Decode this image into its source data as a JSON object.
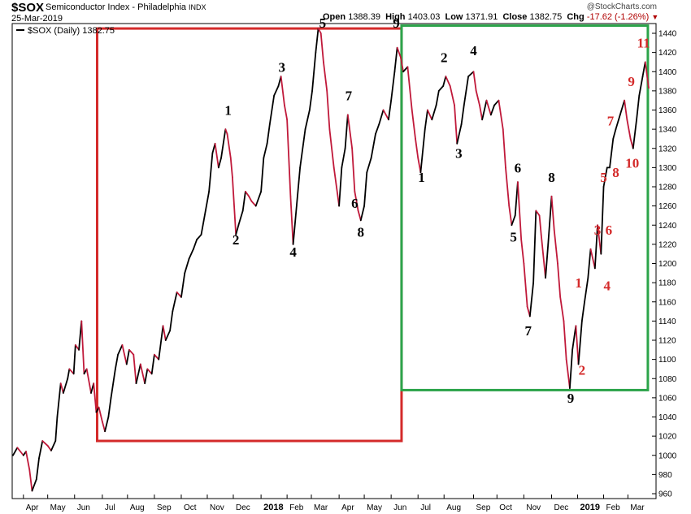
{
  "header": {
    "symbol": "$SOX",
    "name": "Semiconductor Index - Philadelphia",
    "exchange": "INDX",
    "date": "25-Mar-2019",
    "watermark": "@StockCharts.com",
    "open_label": "Open",
    "open": "1388.39",
    "high_label": "High",
    "high": "1403.03",
    "low_label": "Low",
    "low": "1371.91",
    "close_label": "Close",
    "close": "1382.75",
    "chg_label": "Chg",
    "chg": "-17.62 (-1.26%)"
  },
  "colors": {
    "up": "#000000",
    "down": "#c0193a",
    "red_box": "#d42a2a",
    "green_box": "#2ca44a",
    "count_black": "#000000",
    "count_red": "#d42a2a"
  },
  "chart_data": {
    "type": "line",
    "legend": "$SOX (Daily) 1382.75",
    "legend_position": "top-left",
    "grid": false,
    "ylim": [
      950,
      1450
    ],
    "y_ticks": [
      960,
      980,
      1000,
      1020,
      1040,
      1060,
      1080,
      1100,
      1120,
      1140,
      1160,
      1180,
      1200,
      1220,
      1240,
      1260,
      1280,
      1300,
      1320,
      1340,
      1360,
      1380,
      1400,
      1420,
      1440
    ],
    "x_ticks": [
      {
        "label": "Apr",
        "date": "2017-04-03"
      },
      {
        "label": "May",
        "date": "2017-05-01"
      },
      {
        "label": "Jun",
        "date": "2017-06-01"
      },
      {
        "label": "Jul",
        "date": "2017-07-03"
      },
      {
        "label": "Aug",
        "date": "2017-08-01"
      },
      {
        "label": "Sep",
        "date": "2017-09-01"
      },
      {
        "label": "Oct",
        "date": "2017-10-02"
      },
      {
        "label": "Nov",
        "date": "2017-11-01"
      },
      {
        "label": "Dec",
        "date": "2017-12-01"
      },
      {
        "label": "2018",
        "date": "2018-01-02",
        "bold": true
      },
      {
        "label": "Feb",
        "date": "2018-02-01"
      },
      {
        "label": "Mar",
        "date": "2018-03-01"
      },
      {
        "label": "Apr",
        "date": "2018-04-02"
      },
      {
        "label": "May",
        "date": "2018-05-01"
      },
      {
        "label": "Jun",
        "date": "2018-06-01"
      },
      {
        "label": "Jul",
        "date": "2018-07-02"
      },
      {
        "label": "Aug",
        "date": "2018-08-01"
      },
      {
        "label": "Sep",
        "date": "2018-09-04"
      },
      {
        "label": "Oct",
        "date": "2018-10-01"
      },
      {
        "label": "Nov",
        "date": "2018-11-01"
      },
      {
        "label": "Dec",
        "date": "2018-12-03"
      },
      {
        "label": "2019",
        "date": "2019-01-02",
        "bold": true
      },
      {
        "label": "Feb",
        "date": "2019-02-01"
      },
      {
        "label": "Mar",
        "date": "2019-03-01"
      }
    ],
    "series": [
      {
        "points": [
          [
            "2017-03-22",
            1000
          ],
          [
            "2017-03-27",
            1008
          ],
          [
            "2017-04-03",
            1000
          ],
          [
            "2017-04-06",
            1004
          ],
          [
            "2017-04-10",
            985
          ],
          [
            "2017-04-13",
            963
          ],
          [
            "2017-04-18",
            975
          ],
          [
            "2017-04-21",
            997
          ],
          [
            "2017-04-25",
            1015
          ],
          [
            "2017-05-01",
            1010
          ],
          [
            "2017-05-05",
            1005
          ],
          [
            "2017-05-10",
            1015
          ],
          [
            "2017-05-12",
            1040
          ],
          [
            "2017-05-16",
            1075
          ],
          [
            "2017-05-19",
            1065
          ],
          [
            "2017-05-24",
            1080
          ],
          [
            "2017-05-26",
            1090
          ],
          [
            "2017-05-31",
            1085
          ],
          [
            "2017-06-02",
            1115
          ],
          [
            "2017-06-06",
            1110
          ],
          [
            "2017-06-09",
            1140
          ],
          [
            "2017-06-12",
            1085
          ],
          [
            "2017-06-15",
            1090
          ],
          [
            "2017-06-20",
            1065
          ],
          [
            "2017-06-23",
            1075
          ],
          [
            "2017-06-26",
            1045
          ],
          [
            "2017-06-29",
            1050
          ],
          [
            "2017-07-03",
            1035
          ],
          [
            "2017-07-06",
            1025
          ],
          [
            "2017-07-10",
            1040
          ],
          [
            "2017-07-13",
            1060
          ],
          [
            "2017-07-18",
            1090
          ],
          [
            "2017-07-21",
            1105
          ],
          [
            "2017-07-26",
            1115
          ],
          [
            "2017-07-31",
            1095
          ],
          [
            "2017-08-03",
            1110
          ],
          [
            "2017-08-08",
            1105
          ],
          [
            "2017-08-11",
            1075
          ],
          [
            "2017-08-16",
            1095
          ],
          [
            "2017-08-21",
            1075
          ],
          [
            "2017-08-24",
            1090
          ],
          [
            "2017-08-29",
            1085
          ],
          [
            "2017-09-01",
            1105
          ],
          [
            "2017-09-06",
            1100
          ],
          [
            "2017-09-11",
            1135
          ],
          [
            "2017-09-14",
            1120
          ],
          [
            "2017-09-19",
            1130
          ],
          [
            "2017-09-22",
            1150
          ],
          [
            "2017-09-27",
            1170
          ],
          [
            "2017-10-02",
            1165
          ],
          [
            "2017-10-06",
            1190
          ],
          [
            "2017-10-11",
            1205
          ],
          [
            "2017-10-16",
            1215
          ],
          [
            "2017-10-20",
            1225
          ],
          [
            "2017-10-25",
            1230
          ],
          [
            "2017-10-30",
            1255
          ],
          [
            "2017-11-03",
            1275
          ],
          [
            "2017-11-07",
            1315
          ],
          [
            "2017-11-10",
            1325
          ],
          [
            "2017-11-14",
            1300
          ],
          [
            "2017-11-17",
            1310
          ],
          [
            "2017-11-22",
            1340
          ],
          [
            "2017-11-24",
            1335
          ],
          [
            "2017-11-28",
            1310
          ],
          [
            "2017-11-30",
            1290
          ],
          [
            "2017-12-04",
            1230
          ],
          [
            "2017-12-07",
            1240
          ],
          [
            "2017-12-12",
            1255
          ],
          [
            "2017-12-15",
            1275
          ],
          [
            "2017-12-19",
            1270
          ],
          [
            "2017-12-22",
            1265
          ],
          [
            "2017-12-27",
            1260
          ],
          [
            "2018-01-02",
            1275
          ],
          [
            "2018-01-05",
            1310
          ],
          [
            "2018-01-09",
            1325
          ],
          [
            "2018-01-12",
            1345
          ],
          [
            "2018-01-17",
            1375
          ],
          [
            "2018-01-22",
            1385
          ],
          [
            "2018-01-25",
            1395
          ],
          [
            "2018-01-29",
            1365
          ],
          [
            "2018-02-01",
            1350
          ],
          [
            "2018-02-05",
            1270
          ],
          [
            "2018-02-08",
            1220
          ],
          [
            "2018-02-12",
            1260
          ],
          [
            "2018-02-16",
            1300
          ],
          [
            "2018-02-22",
            1340
          ],
          [
            "2018-02-27",
            1360
          ],
          [
            "2018-03-02",
            1380
          ],
          [
            "2018-03-06",
            1420
          ],
          [
            "2018-03-09",
            1445
          ],
          [
            "2018-03-12",
            1440
          ],
          [
            "2018-03-15",
            1410
          ],
          [
            "2018-03-19",
            1380
          ],
          [
            "2018-03-22",
            1340
          ],
          [
            "2018-03-27",
            1300
          ],
          [
            "2018-04-02",
            1260
          ],
          [
            "2018-04-05",
            1300
          ],
          [
            "2018-04-09",
            1320
          ],
          [
            "2018-04-12",
            1355
          ],
          [
            "2018-04-17",
            1320
          ],
          [
            "2018-04-20",
            1275
          ],
          [
            "2018-04-24",
            1255
          ],
          [
            "2018-04-27",
            1245
          ],
          [
            "2018-05-01",
            1260
          ],
          [
            "2018-05-04",
            1295
          ],
          [
            "2018-05-09",
            1310
          ],
          [
            "2018-05-14",
            1335
          ],
          [
            "2018-05-18",
            1345
          ],
          [
            "2018-05-23",
            1360
          ],
          [
            "2018-05-29",
            1350
          ],
          [
            "2018-06-01",
            1370
          ],
          [
            "2018-06-05",
            1400
          ],
          [
            "2018-06-08",
            1425
          ],
          [
            "2018-06-12",
            1415
          ],
          [
            "2018-06-15",
            1400
          ],
          [
            "2018-06-20",
            1405
          ],
          [
            "2018-06-25",
            1360
          ],
          [
            "2018-06-29",
            1330
          ],
          [
            "2018-07-02",
            1310
          ],
          [
            "2018-07-05",
            1295
          ],
          [
            "2018-07-10",
            1340
          ],
          [
            "2018-07-13",
            1360
          ],
          [
            "2018-07-18",
            1350
          ],
          [
            "2018-07-23",
            1365
          ],
          [
            "2018-07-26",
            1380
          ],
          [
            "2018-07-31",
            1385
          ],
          [
            "2018-08-03",
            1395
          ],
          [
            "2018-08-08",
            1385
          ],
          [
            "2018-08-13",
            1365
          ],
          [
            "2018-08-16",
            1325
          ],
          [
            "2018-08-21",
            1345
          ],
          [
            "2018-08-24",
            1365
          ],
          [
            "2018-08-29",
            1395
          ],
          [
            "2018-09-04",
            1400
          ],
          [
            "2018-09-07",
            1380
          ],
          [
            "2018-09-11",
            1365
          ],
          [
            "2018-09-14",
            1350
          ],
          [
            "2018-09-19",
            1370
          ],
          [
            "2018-09-24",
            1355
          ],
          [
            "2018-09-28",
            1365
          ],
          [
            "2018-10-03",
            1370
          ],
          [
            "2018-10-08",
            1340
          ],
          [
            "2018-10-11",
            1300
          ],
          [
            "2018-10-15",
            1260
          ],
          [
            "2018-10-18",
            1240
          ],
          [
            "2018-10-22",
            1250
          ],
          [
            "2018-10-25",
            1285
          ],
          [
            "2018-10-29",
            1225
          ],
          [
            "2018-11-01",
            1200
          ],
          [
            "2018-11-05",
            1155
          ],
          [
            "2018-11-08",
            1145
          ],
          [
            "2018-11-12",
            1180
          ],
          [
            "2018-11-15",
            1255
          ],
          [
            "2018-11-19",
            1250
          ],
          [
            "2018-11-21",
            1230
          ],
          [
            "2018-11-26",
            1185
          ],
          [
            "2018-11-29",
            1220
          ],
          [
            "2018-12-03",
            1270
          ],
          [
            "2018-12-06",
            1235
          ],
          [
            "2018-12-10",
            1200
          ],
          [
            "2018-12-13",
            1165
          ],
          [
            "2018-12-17",
            1140
          ],
          [
            "2018-12-20",
            1100
          ],
          [
            "2018-12-24",
            1070
          ],
          [
            "2018-12-27",
            1110
          ],
          [
            "2018-12-31",
            1135
          ],
          [
            "2019-01-03",
            1095
          ],
          [
            "2019-01-07",
            1140
          ],
          [
            "2019-01-10",
            1160
          ],
          [
            "2019-01-14",
            1185
          ],
          [
            "2019-01-17",
            1215
          ],
          [
            "2019-01-22",
            1195
          ],
          [
            "2019-01-25",
            1240
          ],
          [
            "2019-01-29",
            1210
          ],
          [
            "2019-02-01",
            1280
          ],
          [
            "2019-02-05",
            1300
          ],
          [
            "2019-02-08",
            1300
          ],
          [
            "2019-02-12",
            1330
          ],
          [
            "2019-02-15",
            1340
          ],
          [
            "2019-02-20",
            1355
          ],
          [
            "2019-02-25",
            1370
          ],
          [
            "2019-02-28",
            1350
          ],
          [
            "2019-03-04",
            1330
          ],
          [
            "2019-03-07",
            1320
          ],
          [
            "2019-03-11",
            1350
          ],
          [
            "2019-03-14",
            1375
          ],
          [
            "2019-03-18",
            1395
          ],
          [
            "2019-03-21",
            1410
          ],
          [
            "2019-03-25",
            1383
          ]
        ]
      }
    ],
    "boxes": [
      {
        "name": "red",
        "color": "#d42a2a",
        "x": [
          "2017-06-27",
          "2018-06-13"
        ],
        "y": [
          1015,
          1445
        ]
      },
      {
        "name": "green",
        "color": "#2ca44a",
        "x": [
          "2018-06-13",
          "2019-03-24"
        ],
        "y": [
          1068,
          1448
        ]
      }
    ],
    "annotations": [
      {
        "text": "1",
        "date": "2017-11-25",
        "y": 1355,
        "color": "black"
      },
      {
        "text": "2",
        "date": "2017-12-04",
        "y": 1220,
        "color": "black"
      },
      {
        "text": "3",
        "date": "2018-01-26",
        "y": 1400,
        "color": "black"
      },
      {
        "text": "4",
        "date": "2018-02-08",
        "y": 1207,
        "color": "black"
      },
      {
        "text": "5",
        "date": "2018-03-14",
        "y": 1446,
        "color": "black"
      },
      {
        "text": "6",
        "date": "2018-04-20",
        "y": 1258,
        "color": "black"
      },
      {
        "text": "7",
        "date": "2018-04-13",
        "y": 1370,
        "color": "black"
      },
      {
        "text": "8",
        "date": "2018-04-27",
        "y": 1228,
        "color": "black"
      },
      {
        "text": "9",
        "date": "2018-06-07",
        "y": 1446,
        "color": "black"
      },
      {
        "text": "1",
        "date": "2018-07-06",
        "y": 1285,
        "color": "black"
      },
      {
        "text": "2",
        "date": "2018-08-01",
        "y": 1410,
        "color": "black"
      },
      {
        "text": "3",
        "date": "2018-08-18",
        "y": 1310,
        "color": "black"
      },
      {
        "text": "4",
        "date": "2018-09-04",
        "y": 1417,
        "color": "black"
      },
      {
        "text": "5",
        "date": "2018-10-20",
        "y": 1223,
        "color": "black"
      },
      {
        "text": "6",
        "date": "2018-10-25",
        "y": 1295,
        "color": "black"
      },
      {
        "text": "7",
        "date": "2018-11-06",
        "y": 1125,
        "color": "black"
      },
      {
        "text": "8",
        "date": "2018-12-03",
        "y": 1285,
        "color": "black"
      },
      {
        "text": "9",
        "date": "2018-12-25",
        "y": 1055,
        "color": "black"
      },
      {
        "text": "1",
        "date": "2019-01-03",
        "y": 1175,
        "color": "red"
      },
      {
        "text": "2",
        "date": "2019-01-07",
        "y": 1084,
        "color": "red"
      },
      {
        "text": "3",
        "date": "2019-01-25",
        "y": 1230,
        "color": "red"
      },
      {
        "text": "4",
        "date": "2019-02-05",
        "y": 1172,
        "color": "red"
      },
      {
        "text": "5",
        "date": "2019-02-01",
        "y": 1285,
        "color": "red"
      },
      {
        "text": "6",
        "date": "2019-02-07",
        "y": 1230,
        "color": "red"
      },
      {
        "text": "7",
        "date": "2019-02-09",
        "y": 1344,
        "color": "red"
      },
      {
        "text": "8",
        "date": "2019-02-15",
        "y": 1290,
        "color": "red"
      },
      {
        "text": "9",
        "date": "2019-03-05",
        "y": 1385,
        "color": "red"
      },
      {
        "text": "10",
        "date": "2019-03-06",
        "y": 1300,
        "color": "red"
      },
      {
        "text": "11",
        "date": "2019-03-19",
        "y": 1425,
        "color": "red"
      }
    ]
  }
}
